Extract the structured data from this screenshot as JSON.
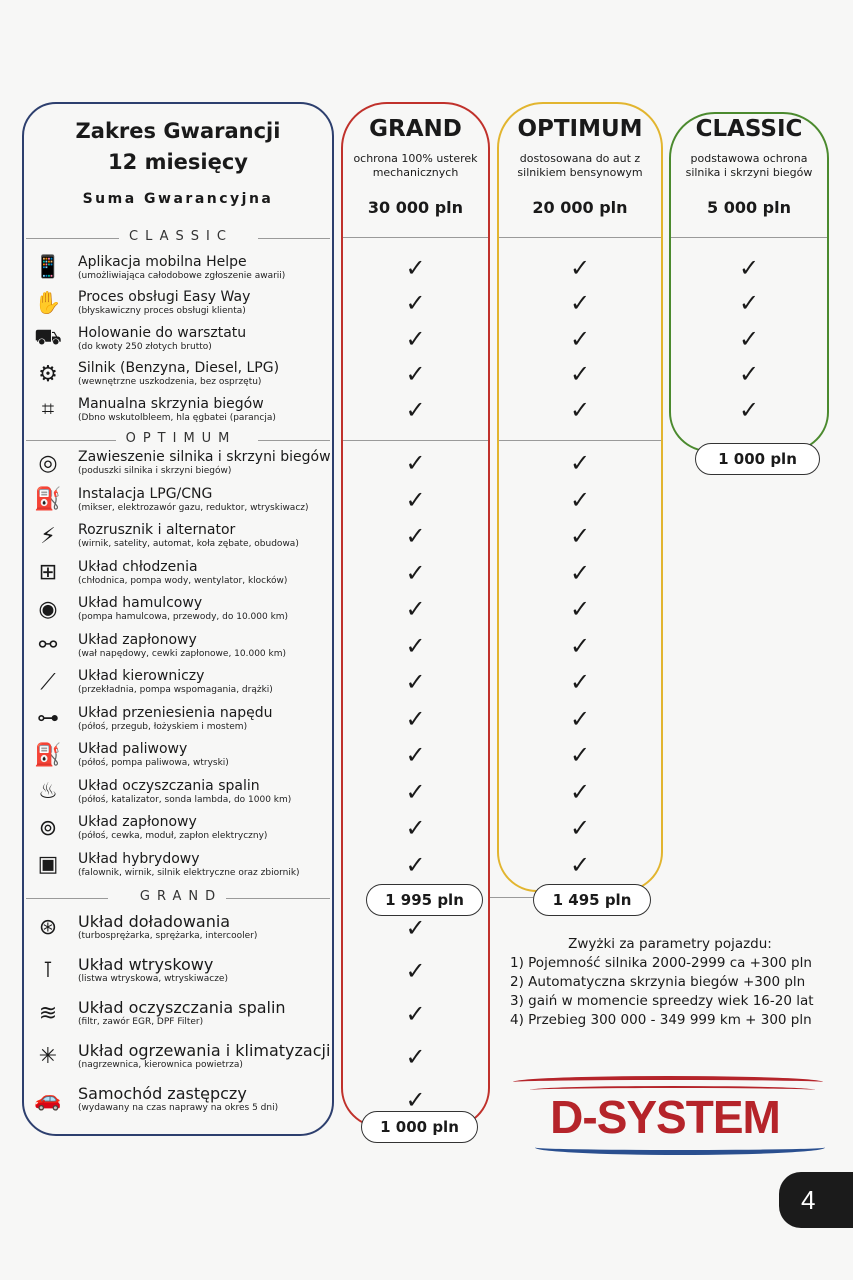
{
  "header": {
    "title_line1": "Zakres Gwarancji",
    "title_line2": "12 miesięcy",
    "sum_label": "Suma Gwarancyjna"
  },
  "sections": [
    {
      "label": "CLASSIC",
      "rows": [
        {
          "icon": "phone-hand-icon",
          "title": "Aplikacja mobilna Helpe",
          "subtitle": "(umożliwiająca całodobowe zgłoszenie awarii)"
        },
        {
          "icon": "easy-hand-icon",
          "title": "Proces obsługi Easy Way",
          "subtitle": "(błyskawiczny proces obsługi klienta)"
        },
        {
          "icon": "tow-truck-icon",
          "title": "Holowanie do warsztatu",
          "subtitle": "(do kwoty 250 złotych brutto)"
        },
        {
          "icon": "engine-icon",
          "title": "Silnik (Benzyna, Diesel, LPG)",
          "subtitle": "(wewnętrzne uszkodzenia, bez osprzętu)"
        },
        {
          "icon": "gear-shift-icon",
          "title": "Manualna skrzynia biegów",
          "subtitle": "(Dbno wskutolbleem, hla ęgbatei (parancja)"
        }
      ]
    },
    {
      "label": "OPTIMUM",
      "rows": [
        {
          "icon": "engine-mount-icon",
          "title": "Zawieszenie silnika i skrzyni biegów",
          "subtitle": "(poduszki silnika i skrzyni biegów)"
        },
        {
          "icon": "lpg-icon",
          "title": "Instalacja LPG/CNG",
          "subtitle": "(mikser, elektrozawór gazu, reduktor, wtryskiwacz)"
        },
        {
          "icon": "battery-icon",
          "title": "Rozrusznik i alternator",
          "subtitle": "(wirnik, satelity, automat, koła zębate, obudowa)"
        },
        {
          "icon": "radiator-icon",
          "title": "Układ chłodzenia",
          "subtitle": "(chłodnica, pompa wody, wentylator, klocków)"
        },
        {
          "icon": "brake-disc-icon",
          "title": "Układ hamulcowy",
          "subtitle": "(pompa hamulcowa, przewody, do 10.000 km)"
        },
        {
          "icon": "ignition-icon",
          "title": "Układ zapłonowy",
          "subtitle": "(wał napędowy, cewki zapłonowe, 10.000 km)"
        },
        {
          "icon": "spark-plug-icon",
          "title": "Układ kierowniczy",
          "subtitle": "(przekładnia, pompa wspomagania, drążki)"
        },
        {
          "icon": "axle-icon",
          "title": "Układ przeniesienia napędu",
          "subtitle": "(półoś, przegub, łożyskiem i mostem)"
        },
        {
          "icon": "fuel-pump-icon",
          "title": "Układ paliwowy",
          "subtitle": "(półoś, pompa paliwowa, wtryski)"
        },
        {
          "icon": "exhaust-icon",
          "title": "Układ oczyszczania spalin",
          "subtitle": "(półoś, katalizator, sonda lambda, do 1000 km)"
        },
        {
          "icon": "ignition-coil-icon",
          "title": "Układ zapłonowy",
          "subtitle": "(półoś, cewka, moduł, zapłon elektryczny)"
        },
        {
          "icon": "hybrid-battery-icon",
          "title": "Układ hybrydowy",
          "subtitle": "(falownik, wirnik, silnik elektryczne oraz zbiornik)"
        }
      ]
    },
    {
      "label": "GRAND",
      "rows": [
        {
          "icon": "turbo-icon",
          "title": "Układ doładowania",
          "subtitle": "(turbosprężarka, sprężarka, intercooler)"
        },
        {
          "icon": "injector-icon",
          "title": "Układ wtryskowy",
          "subtitle": "(listwa wtryskowa, wtryskiwacze)"
        },
        {
          "icon": "filter-icon",
          "title": "Układ oczyszczania spalin",
          "subtitle": "(filtr, zawór EGR, DPF Filter)"
        },
        {
          "icon": "ac-snowflake-icon",
          "title": "Układ ogrzewania i klimatyzacji",
          "subtitle": "(nagrzewnica, kierownica powietrza)"
        },
        {
          "icon": "car-icon",
          "title": "Samochód zastępczy",
          "subtitle": "(wydawany na czas naprawy na okres 5 dni)"
        }
      ]
    }
  ],
  "plans": [
    {
      "name": "GRAND",
      "description": "ochrona 100% usterek mechanicznych",
      "sum": "30 000 pln",
      "price": "1 995 pln",
      "price_after_grand": "1 000 pln",
      "color": "#c0312b",
      "covered_sections": 3
    },
    {
      "name": "OPTIMUM",
      "description": "dostosowana do aut z silnikiem bensynowym",
      "sum": "20 000 pln",
      "price": "1 495 pln",
      "color": "#e2b52f",
      "covered_sections": 2
    },
    {
      "name": "CLASSIC",
      "description": "podstawowa ochrona silnika i skrzyni biegów",
      "sum": "5 000 pln",
      "price": "1 000 pln",
      "color": "#4b8a2e",
      "covered_sections": 1
    }
  ],
  "surcharges": {
    "title": "Zwyżki za parametry pojazdu:",
    "items": [
      "1) Pojemność silnika 2000-2999 ca +300 pln",
      "2) Automatyczna skrzynia biegów +300 pln",
      "3) gaiń w momencie spreedzy wiek 16-20 lat",
      "4) Przebieg 300 000 - 349 999 km + 300 pln"
    ]
  },
  "brand": {
    "logo_text": "D-SYSTEM",
    "colors": {
      "red": "#b5242a",
      "blue": "#2a4f8f"
    }
  },
  "page_number": "4",
  "icons": {
    "check": "check-icon"
  }
}
